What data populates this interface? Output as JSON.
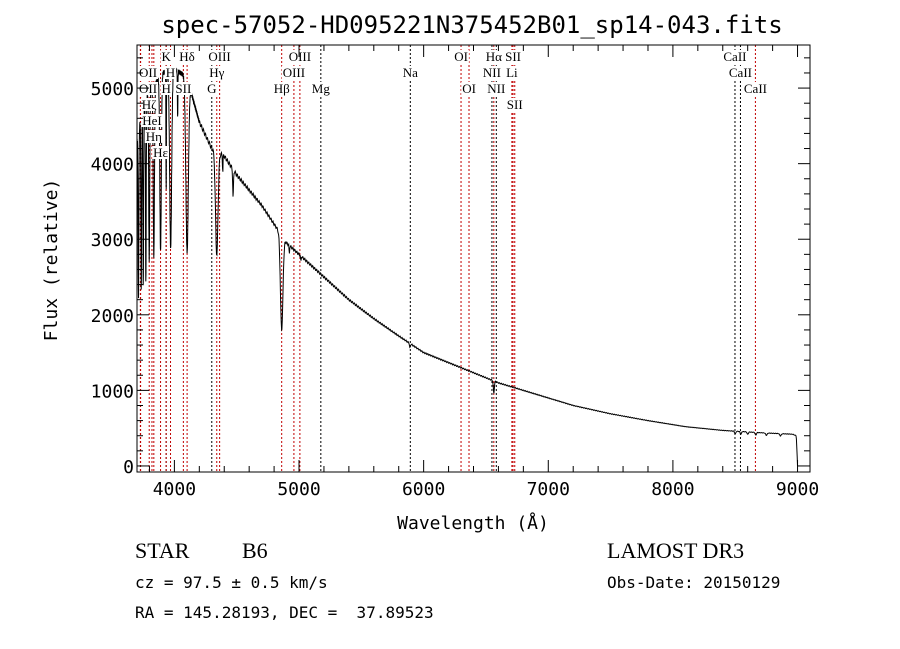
{
  "chart_data": {
    "type": "line",
    "title": "spec-57052-HD095221N375452B01_sp14-043.fits",
    "xlabel": "Wavelength (Å)",
    "ylabel": "Flux (relative)",
    "xlim": [
      3700,
      9100
    ],
    "ylim": [
      -80,
      5570
    ],
    "xticks": [
      4000,
      5000,
      6000,
      7000,
      8000,
      9000
    ],
    "yticks": [
      0,
      1000,
      2000,
      3000,
      4000,
      5000
    ],
    "grid": false,
    "continuum": [
      [
        3700,
        4300
      ],
      [
        3750,
        4800
      ],
      [
        3900,
        5200
      ],
      [
        4000,
        5250
      ],
      [
        4100,
        5150
      ],
      [
        4200,
        4550
      ],
      [
        4300,
        4200
      ],
      [
        4400,
        4100
      ],
      [
        4500,
        3850
      ],
      [
        4600,
        3650
      ],
      [
        4700,
        3450
      ],
      [
        4800,
        3200
      ],
      [
        4900,
        2950
      ],
      [
        5000,
        2800
      ],
      [
        5200,
        2500
      ],
      [
        5400,
        2200
      ],
      [
        5600,
        1950
      ],
      [
        5800,
        1720
      ],
      [
        6000,
        1500
      ],
      [
        6300,
        1300
      ],
      [
        6600,
        1100
      ],
      [
        6900,
        950
      ],
      [
        7200,
        800
      ],
      [
        7500,
        690
      ],
      [
        7800,
        600
      ],
      [
        8100,
        520
      ],
      [
        8400,
        470
      ],
      [
        8700,
        440
      ],
      [
        8960,
        420
      ],
      [
        8990,
        400
      ],
      [
        9000,
        0
      ]
    ],
    "absorption_lines": [
      [
        3712,
        0.5,
        3
      ],
      [
        3734,
        0.5,
        3
      ],
      [
        3750,
        0.5,
        3
      ],
      [
        3771,
        0.5,
        3
      ],
      [
        3798,
        0.45,
        4
      ],
      [
        3835,
        0.45,
        5
      ],
      [
        3889,
        0.45,
        6
      ],
      [
        3934,
        0.3,
        2
      ],
      [
        3970,
        0.45,
        8
      ],
      [
        4026,
        0.12,
        2
      ],
      [
        4102,
        0.45,
        10
      ],
      [
        4340,
        0.33,
        10
      ],
      [
        4388,
        0.06,
        2
      ],
      [
        4471,
        0.1,
        3
      ],
      [
        4861,
        0.41,
        10
      ],
      [
        4922,
        0.04,
        2
      ],
      [
        5015,
        0.03,
        2
      ],
      [
        5890,
        0.04,
        3
      ],
      [
        6563,
        0.15,
        4
      ],
      [
        8500,
        0.08,
        5
      ],
      [
        8545,
        0.08,
        5
      ],
      [
        8600,
        0.07,
        5
      ],
      [
        8665,
        0.08,
        5
      ],
      [
        8750,
        0.07,
        6
      ],
      [
        8863,
        0.07,
        6
      ]
    ],
    "line_labels": [
      {
        "label": "H",
        "wavelength": 3969,
        "row": 1,
        "color": "#c00000"
      },
      {
        "label": "K",
        "wavelength": 3934,
        "row": 1,
        "color": "#000000"
      },
      {
        "label": "Hδ",
        "wavelength": 4102,
        "row": 1,
        "color": "#c00000"
      },
      {
        "label": "OIII",
        "wavelength": 4363,
        "row": 1,
        "color": "#c00000"
      },
      {
        "label": "OIII",
        "wavelength": 5007,
        "row": 1,
        "color": "#c00000"
      },
      {
        "label": "OI",
        "wavelength": 6300,
        "row": 1,
        "color": "#c00000"
      },
      {
        "label": "Hα",
        "wavelength": 6563,
        "row": 1,
        "color": "#c00000"
      },
      {
        "label": "SII",
        "wavelength": 6717,
        "row": 1,
        "color": "#c00000"
      },
      {
        "label": "CaII",
        "wavelength": 8498,
        "row": 1,
        "color": "#000000"
      },
      {
        "label": "OII",
        "wavelength": 3727,
        "row": 2,
        "color": "#c00000"
      },
      {
        "label": "HeI",
        "wavelength": 3820,
        "row": 2,
        "color": "#c00000"
      },
      {
        "label": "Hε",
        "wavelength": 3889,
        "row": 2,
        "color": "#c00000"
      },
      {
        "label": "SII",
        "wavelength": 4072,
        "row": 2,
        "color": "#c00000"
      },
      {
        "label": "Hγ",
        "wavelength": 4340,
        "row": 2,
        "color": "#c00000"
      },
      {
        "label": "OIII",
        "wavelength": 4959,
        "row": 2,
        "color": "#c00000"
      },
      {
        "label": "Na",
        "wavelength": 5893,
        "row": 2,
        "color": "#000000"
      },
      {
        "label": "NII",
        "wavelength": 6548,
        "row": 2,
        "color": "#000000"
      },
      {
        "label": "Li",
        "wavelength": 6708,
        "row": 2,
        "color": "#c00000"
      },
      {
        "label": "CaII",
        "wavelength": 8542,
        "row": 2,
        "color": "#000000"
      },
      {
        "label": "OII",
        "wavelength": 3729,
        "row": 3,
        "color": "#c00000"
      },
      {
        "label": "Hη",
        "wavelength": 3835,
        "row": 3,
        "color": "#c00000"
      },
      {
        "label": "Hζ",
        "wavelength": 3798,
        "row": 3,
        "color": "#c00000"
      },
      {
        "label": "H",
        "wavelength": 3934,
        "row": 3,
        "color": "#c00000"
      },
      {
        "label": "G",
        "wavelength": 4300,
        "row": 3,
        "color": "#000000"
      },
      {
        "label": "Hβ",
        "wavelength": 4861,
        "row": 3,
        "color": "#c00000"
      },
      {
        "label": "Mg",
        "wavelength": 5175,
        "row": 3,
        "color": "#000000"
      },
      {
        "label": "OI",
        "wavelength": 6364,
        "row": 3,
        "color": "#c00000"
      },
      {
        "label": "NII",
        "wavelength": 6583,
        "row": 3,
        "color": "#000000"
      },
      {
        "label": "SII",
        "wavelength": 6731,
        "row": 3,
        "color": "#c00000"
      },
      {
        "label": "CaII",
        "wavelength": 8662,
        "row": 3,
        "color": "#c00000"
      }
    ]
  },
  "info": {
    "object_type": "STAR",
    "subclass": "B6",
    "survey": "LAMOST DR3",
    "cz": "cz = 97.5 ± 0.5 km/s",
    "obs_date": "Obs-Date: 20150129",
    "coords": "RA = 145.28193, DEC =  37.89523"
  }
}
